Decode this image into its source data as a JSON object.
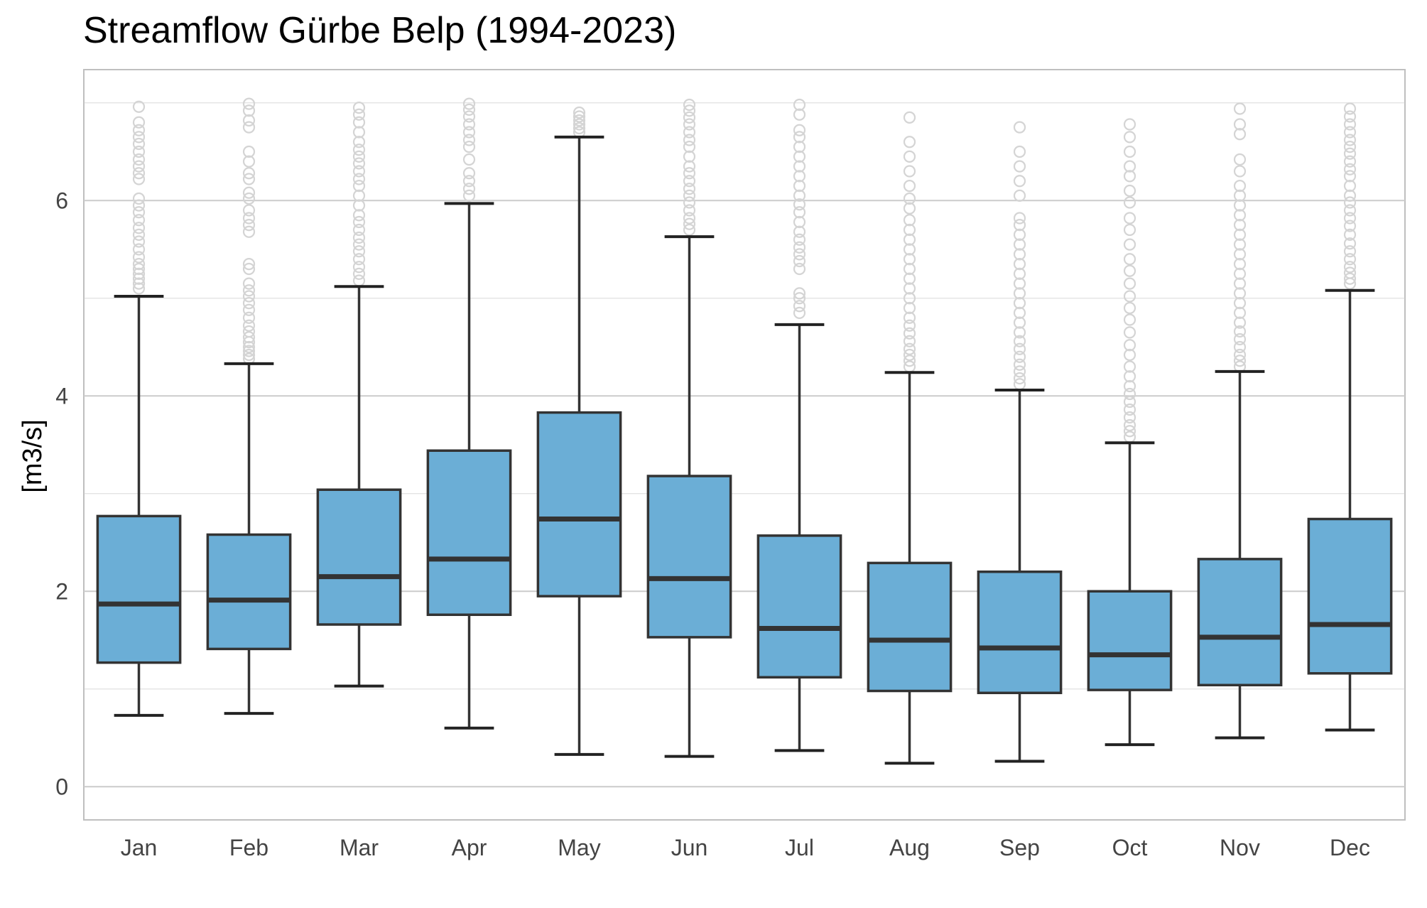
{
  "chart_data": {
    "type": "box",
    "title": "Streamflow Gürbe Belp (1994-2023)",
    "ylabel": "[m3/s]",
    "xlabel": "",
    "ylim": [
      -0.34,
      7.34
    ],
    "yticks": [
      0,
      2,
      4,
      6
    ],
    "grid": true,
    "colors": {
      "box_fill": "#6baed6",
      "box_edge": "#333333",
      "outlier": "#d4d4d4",
      "grid": "#cccccc",
      "frame": "#bfbfbf"
    },
    "categories": [
      "Jan",
      "Feb",
      "Mar",
      "Apr",
      "May",
      "Jun",
      "Jul",
      "Aug",
      "Sep",
      "Oct",
      "Nov",
      "Dec"
    ],
    "boxes": [
      {
        "whislo": 0.73,
        "q1": 1.27,
        "med": 1.87,
        "q3": 2.77,
        "whishi": 5.02,
        "fliers": [
          5.1,
          5.15,
          5.2,
          5.25,
          5.3,
          5.35,
          5.42,
          5.5,
          5.58,
          5.65,
          5.72,
          5.8,
          5.88,
          5.95,
          6.02,
          6.22,
          6.28,
          6.35,
          6.42,
          6.5,
          6.58,
          6.65,
          6.72,
          6.8,
          6.96
        ]
      },
      {
        "whislo": 0.75,
        "q1": 1.41,
        "med": 1.91,
        "q3": 2.58,
        "whishi": 4.33,
        "fliers": [
          4.38,
          4.42,
          4.46,
          4.5,
          4.55,
          4.6,
          4.66,
          4.72,
          4.8,
          4.88,
          4.95,
          5.02,
          5.08,
          5.15,
          5.3,
          5.35,
          5.68,
          5.75,
          5.82,
          5.9,
          6.02,
          6.08,
          6.22,
          6.28,
          6.4,
          6.5,
          6.75,
          6.82,
          6.92,
          6.99
        ]
      },
      {
        "whislo": 1.03,
        "q1": 1.66,
        "med": 2.15,
        "q3": 3.04,
        "whishi": 5.12,
        "fliers": [
          5.18,
          5.25,
          5.32,
          5.4,
          5.48,
          5.55,
          5.62,
          5.7,
          5.78,
          5.85,
          5.95,
          6.05,
          6.15,
          6.22,
          6.3,
          6.38,
          6.45,
          6.52,
          6.6,
          6.7,
          6.8,
          6.88,
          6.95
        ]
      },
      {
        "whislo": 0.6,
        "q1": 1.76,
        "med": 2.33,
        "q3": 3.44,
        "whishi": 5.97,
        "fliers": [
          6.05,
          6.12,
          6.2,
          6.28,
          6.42,
          6.55,
          6.62,
          6.7,
          6.78,
          6.86,
          6.93,
          6.99
        ]
      },
      {
        "whislo": 0.33,
        "q1": 1.95,
        "med": 2.74,
        "q3": 3.83,
        "whishi": 6.65,
        "fliers": [
          6.7,
          6.74,
          6.78,
          6.82,
          6.86,
          6.9
        ]
      },
      {
        "whislo": 0.31,
        "q1": 1.53,
        "med": 2.13,
        "q3": 3.18,
        "whishi": 5.63,
        "fliers": [
          5.7,
          5.76,
          5.82,
          5.9,
          5.98,
          6.05,
          6.12,
          6.2,
          6.28,
          6.35,
          6.45,
          6.55,
          6.62,
          6.7,
          6.78,
          6.85,
          6.92,
          6.98
        ]
      },
      {
        "whislo": 0.37,
        "q1": 1.12,
        "med": 1.62,
        "q3": 2.57,
        "whishi": 4.73,
        "fliers": [
          4.85,
          4.92,
          5.0,
          5.05,
          5.3,
          5.38,
          5.45,
          5.52,
          5.6,
          5.68,
          5.78,
          5.88,
          5.96,
          6.05,
          6.15,
          6.25,
          6.35,
          6.45,
          6.55,
          6.65,
          6.72,
          6.88,
          6.98
        ]
      },
      {
        "whislo": 0.24,
        "q1": 0.98,
        "med": 1.5,
        "q3": 2.29,
        "whishi": 4.24,
        "fliers": [
          4.3,
          4.36,
          4.42,
          4.48,
          4.56,
          4.64,
          4.72,
          4.8,
          4.9,
          5.0,
          5.1,
          5.2,
          5.3,
          5.4,
          5.5,
          5.6,
          5.7,
          5.8,
          5.92,
          6.02,
          6.15,
          6.3,
          6.45,
          6.6,
          6.85
        ]
      },
      {
        "whislo": 0.26,
        "q1": 0.96,
        "med": 1.42,
        "q3": 2.2,
        "whishi": 4.06,
        "fliers": [
          4.12,
          4.18,
          4.25,
          4.32,
          4.4,
          4.48,
          4.56,
          4.65,
          4.75,
          4.85,
          4.95,
          5.05,
          5.15,
          5.25,
          5.35,
          5.45,
          5.55,
          5.65,
          5.75,
          5.82,
          6.05,
          6.2,
          6.35,
          6.5,
          6.75
        ]
      },
      {
        "whislo": 0.43,
        "q1": 0.99,
        "med": 1.35,
        "q3": 2.0,
        "whishi": 3.52,
        "fliers": [
          3.58,
          3.64,
          3.7,
          3.78,
          3.86,
          3.94,
          4.02,
          4.1,
          4.2,
          4.3,
          4.42,
          4.52,
          4.65,
          4.78,
          4.9,
          5.02,
          5.15,
          5.28,
          5.4,
          5.55,
          5.7,
          5.82,
          5.98,
          6.1,
          6.25,
          6.35,
          6.5,
          6.65,
          6.78
        ]
      },
      {
        "whislo": 0.5,
        "q1": 1.04,
        "med": 1.53,
        "q3": 2.33,
        "whishi": 4.25,
        "fliers": [
          4.3,
          4.36,
          4.42,
          4.5,
          4.58,
          4.66,
          4.75,
          4.85,
          4.95,
          5.05,
          5.15,
          5.25,
          5.35,
          5.45,
          5.55,
          5.65,
          5.75,
          5.85,
          5.95,
          6.05,
          6.15,
          6.3,
          6.42,
          6.68,
          6.78,
          6.94
        ]
      },
      {
        "whislo": 0.58,
        "q1": 1.16,
        "med": 1.66,
        "q3": 2.74,
        "whishi": 5.08,
        "fliers": [
          5.15,
          5.2,
          5.26,
          5.32,
          5.4,
          5.48,
          5.56,
          5.65,
          5.74,
          5.82,
          5.9,
          5.98,
          6.05,
          6.15,
          6.25,
          6.32,
          6.4,
          6.48,
          6.55,
          6.62,
          6.7,
          6.78,
          6.86,
          6.94
        ]
      }
    ]
  }
}
